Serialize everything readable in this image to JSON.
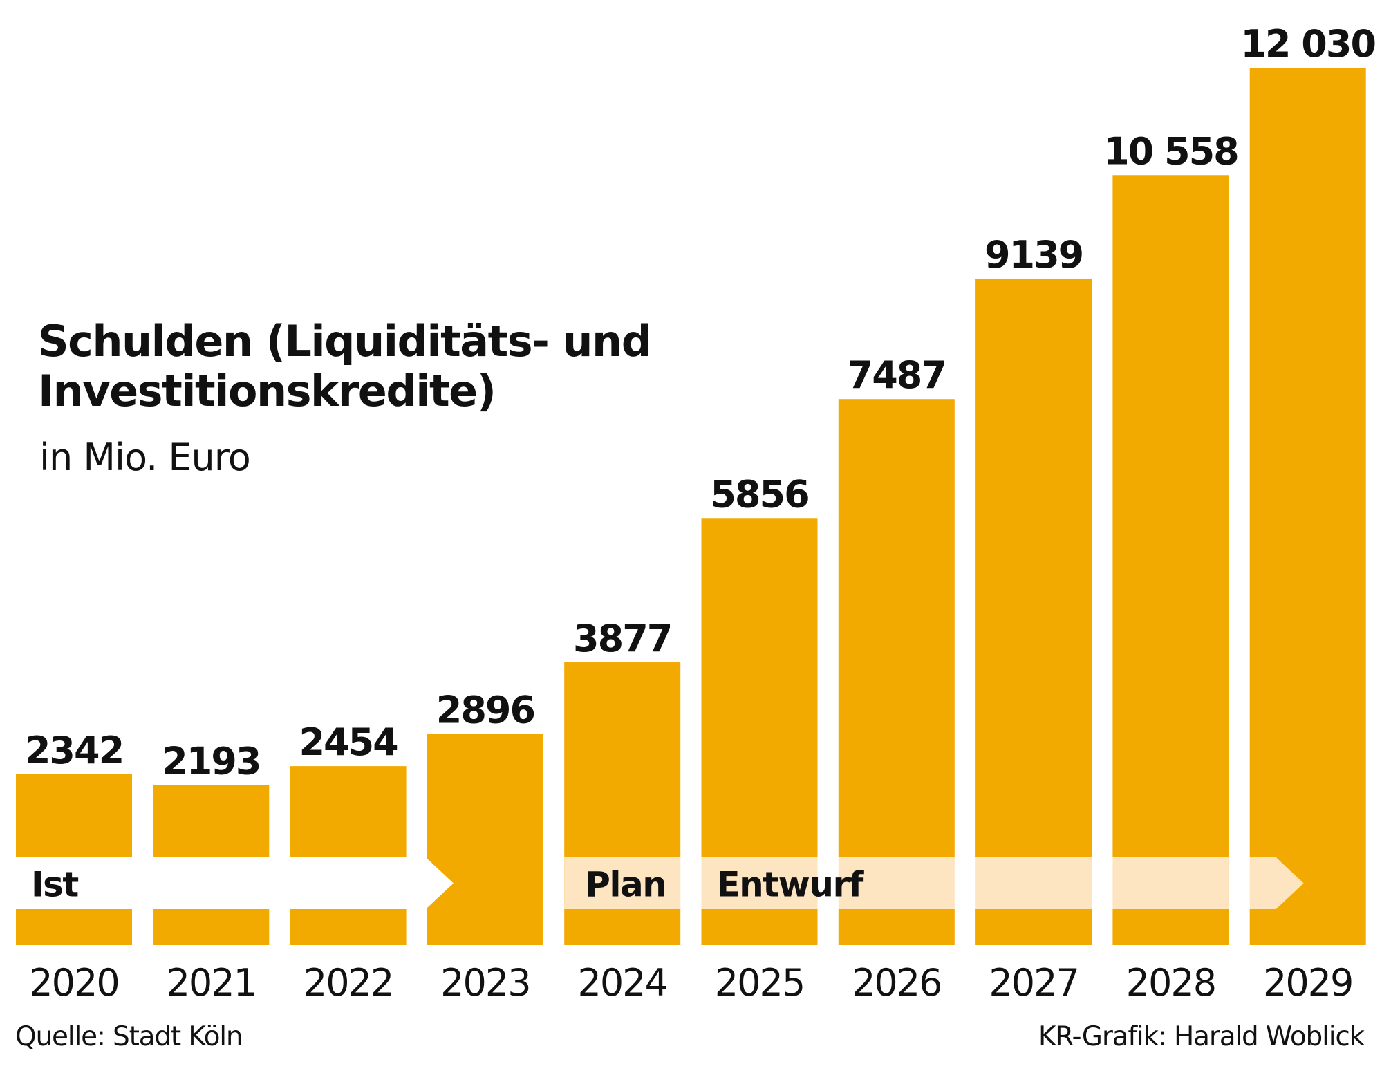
{
  "chart_data": {
    "type": "bar",
    "title": "Schulden (Liquiditäts- und Investitionskredite)",
    "title_lines": [
      "Schulden (Liquiditäts- und",
      "Investitionskredite)"
    ],
    "subtitle": "in Mio. Euro",
    "xlabel": "",
    "ylabel": "",
    "categories": [
      "2020",
      "2021",
      "2022",
      "2023",
      "2024",
      "2025",
      "2026",
      "2027",
      "2028",
      "2029"
    ],
    "values": [
      2342,
      2193,
      2454,
      2896,
      3877,
      5856,
      7487,
      9139,
      10558,
      12030
    ],
    "value_labels": [
      "2342",
      "2193",
      "2454",
      "2896",
      "3877",
      "5856",
      "7487",
      "9139",
      "10 558",
      "12 030"
    ],
    "ylim": [
      0,
      12030
    ],
    "grid": false,
    "legend": "none",
    "phases": [
      {
        "label": "Ist",
        "from": "2020",
        "to": "2023",
        "style": "white-arrow"
      },
      {
        "label": "Plan",
        "from": "2024",
        "to": "2024",
        "style": "light-band"
      },
      {
        "label": "Entwurf",
        "from": "2025",
        "to": "2029",
        "style": "light-arrow"
      }
    ],
    "colors": {
      "bar": "#f2a900",
      "band_ist": "#ffffff",
      "band_plan": "#fde5c2",
      "text": "#111111"
    }
  },
  "footer": {
    "source": "Quelle: Stadt Köln",
    "credit": "KR-Grafik: Harald Woblick"
  }
}
